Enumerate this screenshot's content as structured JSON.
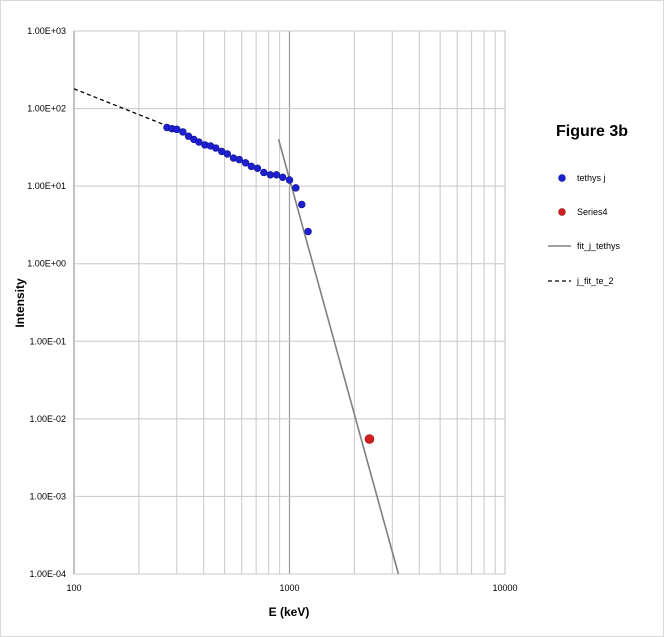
{
  "chart_data": {
    "type": "scatter",
    "title": "Figure 3b",
    "xlabel": "E (keV)",
    "ylabel": "Intensity",
    "x_scale": "log",
    "y_scale": "log",
    "xlim": [
      100,
      10000
    ],
    "ylim": [
      0.0001,
      1000
    ],
    "grid": true,
    "legend_position": "right",
    "x_tick_values": [
      100,
      1000,
      10000
    ],
    "x_tick_labels": [
      "100",
      "1000",
      "10000"
    ],
    "y_tick_values": [
      0.0001,
      0.001,
      0.01,
      0.1,
      1,
      10,
      100,
      1000
    ],
    "y_tick_labels": [
      "1.00E-04",
      "1.00E-03",
      "1.00E-02",
      "1.00E-01",
      "1.00E+00",
      "1.00E+01",
      "1.00E+02",
      "1.00E+03"
    ],
    "series": [
      {
        "name": "tethys j",
        "style": "marker",
        "color": "#1f1fd2",
        "points": [
          [
            270,
            57
          ],
          [
            285,
            55
          ],
          [
            300,
            54
          ],
          [
            320,
            50
          ],
          [
            340,
            44
          ],
          [
            360,
            40
          ],
          [
            380,
            37
          ],
          [
            405,
            34
          ],
          [
            430,
            33
          ],
          [
            455,
            31
          ],
          [
            485,
            28
          ],
          [
            515,
            26
          ],
          [
            550,
            23
          ],
          [
            585,
            22
          ],
          [
            625,
            20
          ],
          [
            665,
            18
          ],
          [
            710,
            17
          ],
          [
            760,
            15
          ],
          [
            815,
            14
          ],
          [
            870,
            14
          ],
          [
            930,
            13
          ],
          [
            1000,
            12
          ],
          [
            1070,
            9.5
          ],
          [
            1140,
            5.8
          ],
          [
            1220,
            2.6
          ]
        ]
      },
      {
        "name": "Series4",
        "style": "marker",
        "color": "#d21f1f",
        "points": [
          [
            2350,
            0.0055
          ]
        ]
      },
      {
        "name": "fit_j_tethys",
        "style": "solid-line",
        "color": "#808080",
        "points": [
          [
            890,
            40
          ],
          [
            3200,
            0.0001
          ]
        ]
      },
      {
        "name": "j_fit_te_2",
        "style": "dashed-line",
        "color": "#000000",
        "points": [
          [
            100,
            180
          ],
          [
            270,
            60
          ]
        ]
      }
    ]
  }
}
